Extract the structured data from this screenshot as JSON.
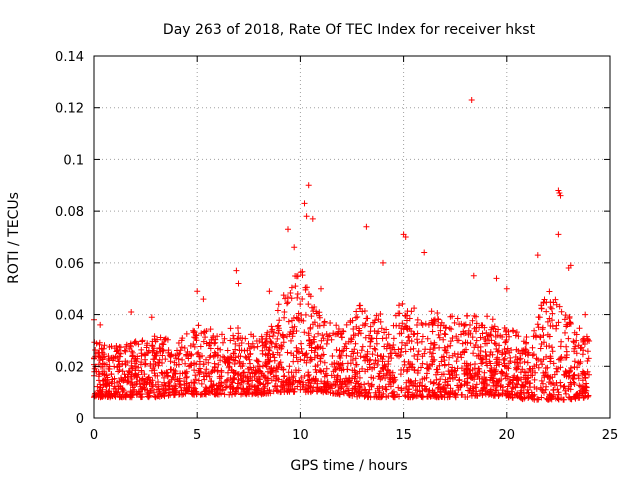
{
  "chart_data": {
    "type": "scatter",
    "title": "Day 263 of 2018, Rate Of TEC Index for receiver hkst",
    "xlabel": "GPS time / hours",
    "ylabel": "ROTI / TECUs",
    "xlim": [
      0,
      25
    ],
    "ylim": [
      0,
      0.14
    ],
    "xticks": [
      0,
      5,
      10,
      15,
      20,
      25
    ],
    "xtick_labels": [
      "0",
      "5",
      "10",
      "15",
      "20",
      "25"
    ],
    "yticks": [
      0,
      0.02,
      0.04,
      0.06,
      0.08,
      0.1,
      0.12,
      0.14
    ],
    "ytick_labels": [
      "0",
      "0.02",
      "0.04",
      "0.06",
      "0.08",
      "0.1",
      "0.12",
      "0.14"
    ],
    "grid": true,
    "marker": "+",
    "color": "#ff0000",
    "x_data_range": [
      0,
      24
    ],
    "envelope_hours": [
      0,
      1,
      2,
      3,
      4,
      5,
      6,
      7,
      8,
      9,
      10,
      11,
      12,
      13,
      14,
      15,
      16,
      17,
      18,
      19,
      20,
      21,
      22,
      23,
      24
    ],
    "envelope_low": [
      0.008,
      0.008,
      0.008,
      0.008,
      0.009,
      0.009,
      0.009,
      0.009,
      0.009,
      0.01,
      0.01,
      0.01,
      0.009,
      0.008,
      0.008,
      0.008,
      0.008,
      0.008,
      0.008,
      0.009,
      0.008,
      0.007,
      0.007,
      0.007,
      0.008
    ],
    "envelope_high": [
      0.03,
      0.028,
      0.03,
      0.032,
      0.03,
      0.036,
      0.034,
      0.036,
      0.03,
      0.045,
      0.06,
      0.04,
      0.035,
      0.045,
      0.04,
      0.045,
      0.042,
      0.04,
      0.04,
      0.04,
      0.035,
      0.032,
      0.05,
      0.04,
      0.032
    ],
    "peaks": [
      {
        "x": 0.0,
        "y": 0.038
      },
      {
        "x": 0.3,
        "y": 0.036
      },
      {
        "x": 1.8,
        "y": 0.041
      },
      {
        "x": 2.8,
        "y": 0.039
      },
      {
        "x": 5.0,
        "y": 0.049
      },
      {
        "x": 5.3,
        "y": 0.046
      },
      {
        "x": 6.9,
        "y": 0.057
      },
      {
        "x": 7.0,
        "y": 0.052
      },
      {
        "x": 8.5,
        "y": 0.049
      },
      {
        "x": 9.4,
        "y": 0.073
      },
      {
        "x": 9.7,
        "y": 0.066
      },
      {
        "x": 10.2,
        "y": 0.083
      },
      {
        "x": 10.3,
        "y": 0.078
      },
      {
        "x": 10.4,
        "y": 0.09
      },
      {
        "x": 10.6,
        "y": 0.077
      },
      {
        "x": 11.0,
        "y": 0.05
      },
      {
        "x": 13.2,
        "y": 0.074
      },
      {
        "x": 14.0,
        "y": 0.06
      },
      {
        "x": 15.0,
        "y": 0.071
      },
      {
        "x": 15.1,
        "y": 0.07
      },
      {
        "x": 16.0,
        "y": 0.064
      },
      {
        "x": 18.3,
        "y": 0.123
      },
      {
        "x": 18.4,
        "y": 0.055
      },
      {
        "x": 19.5,
        "y": 0.054
      },
      {
        "x": 20.0,
        "y": 0.05
      },
      {
        "x": 21.5,
        "y": 0.063
      },
      {
        "x": 22.5,
        "y": 0.088
      },
      {
        "x": 22.55,
        "y": 0.087
      },
      {
        "x": 22.6,
        "y": 0.086
      },
      {
        "x": 22.5,
        "y": 0.071
      },
      {
        "x": 23.1,
        "y": 0.059
      },
      {
        "x": 23.0,
        "y": 0.058
      },
      {
        "x": 23.8,
        "y": 0.04
      }
    ]
  }
}
